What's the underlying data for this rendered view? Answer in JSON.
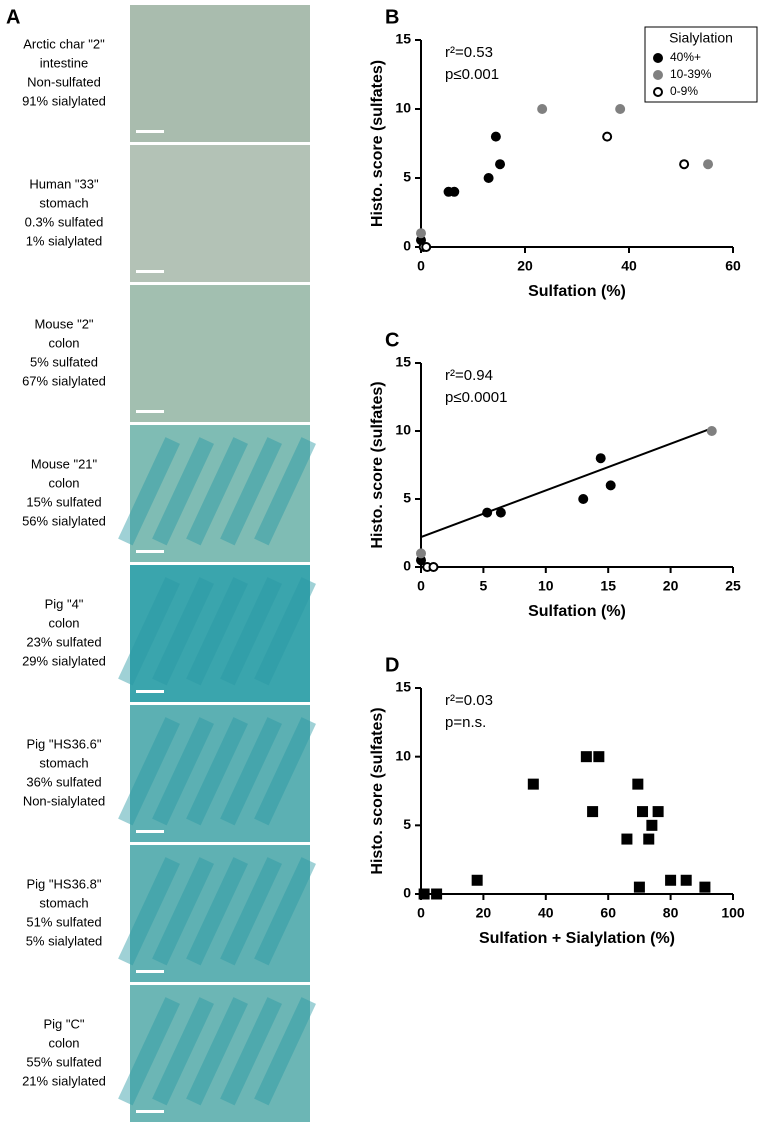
{
  "panel_a": {
    "label": "A",
    "samples": [
      {
        "lines": [
          "Arctic char \"2\"",
          "intestine",
          "Non-sulfated",
          "91% sialylated"
        ]
      },
      {
        "lines": [
          "Human \"33\"",
          "stomach",
          "0.3% sulfated",
          "1% sialylated"
        ]
      },
      {
        "lines": [
          "Mouse \"2\"",
          "colon",
          "5% sulfated",
          "67% sialylated"
        ]
      },
      {
        "lines": [
          "Mouse \"21\"",
          "colon",
          "15% sulfated",
          "56% sialylated"
        ]
      },
      {
        "lines": [
          "Pig \"4\"",
          "colon",
          "23% sulfated",
          "29% sialylated"
        ]
      },
      {
        "lines": [
          "Pig \"HS36.6\"",
          "stomach",
          "36% sulfated",
          "Non-sialylated"
        ]
      },
      {
        "lines": [
          "Pig \"HS36.8\"",
          "stomach",
          "51% sulfated",
          "5% sialylated"
        ]
      },
      {
        "lines": [
          "Pig \"C\"",
          "colon",
          "55% sulfated",
          "21% sialylated"
        ]
      }
    ]
  },
  "chart_data": [
    {
      "type": "scatter",
      "panel_label": "B",
      "x_label": "Sulfation (%)",
      "y_label": "Histo. score (sulfates)",
      "annotations": [
        "r²=0.53",
        "p≤0.001"
      ],
      "legend_title": "Sialylation",
      "legend": "upper right",
      "xlim": [
        0,
        60
      ],
      "xticks": [
        0,
        20,
        40,
        60
      ],
      "ylim": [
        0,
        15
      ],
      "yticks": [
        0,
        5,
        10,
        15
      ],
      "series": [
        {
          "name": "40%+",
          "color": "#000000",
          "x": [
            0,
            5.3,
            6.4,
            13,
            14.4,
            15.2
          ],
          "values": [
            0.5,
            4,
            4,
            5,
            8,
            6
          ]
        },
        {
          "name": "10-39%",
          "color": "#808080",
          "x": [
            0,
            23.3,
            38.3,
            55.2
          ],
          "values": [
            1,
            10,
            10,
            6
          ]
        },
        {
          "name": "0-9%",
          "color": "#ffffff",
          "x": [
            0.5,
            1,
            35.8,
            50.6
          ],
          "values": [
            0,
            0,
            8,
            6
          ]
        }
      ]
    },
    {
      "type": "scatter",
      "panel_label": "C",
      "x_label": "Sulfation (%)",
      "y_label": "Histo. score (sulfates)",
      "annotations": [
        "r²=0.94",
        "p≤0.0001"
      ],
      "xlim": [
        0,
        25
      ],
      "xticks": [
        0,
        5,
        10,
        15,
        20,
        25
      ],
      "ylim": [
        0,
        15
      ],
      "yticks": [
        0,
        5,
        10,
        15
      ],
      "trend_line": {
        "x": [
          0,
          23.3
        ],
        "values": [
          2.2,
          10.2
        ]
      },
      "series": [
        {
          "name": "40%+",
          "color": "#000000",
          "x": [
            0,
            5.3,
            6.4,
            13,
            14.4,
            15.2
          ],
          "values": [
            0.5,
            4,
            4,
            5,
            8,
            6
          ]
        },
        {
          "name": "10-39%",
          "color": "#808080",
          "x": [
            0,
            23.3
          ],
          "values": [
            1,
            10
          ]
        },
        {
          "name": "0-9%",
          "color": "#ffffff",
          "x": [
            0.5,
            1
          ],
          "values": [
            0,
            0
          ]
        }
      ]
    },
    {
      "type": "scatter",
      "panel_label": "D",
      "x_label": "Sulfation + Sialylation (%)",
      "y_label": "Histo. score (sulfates)",
      "annotations": [
        "r²=0.03",
        "p=n.s."
      ],
      "marker": "square",
      "xlim": [
        0,
        100
      ],
      "xticks": [
        0,
        20,
        40,
        60,
        80,
        100
      ],
      "ylim": [
        0,
        15
      ],
      "yticks": [
        0,
        5,
        10,
        15
      ],
      "series": [
        {
          "color": "#000000",
          "x": [
            1,
            5,
            18,
            36,
            53,
            55,
            57,
            66,
            69.5,
            70,
            71,
            73,
            74,
            76,
            80,
            85,
            91
          ],
          "values": [
            0,
            0,
            1,
            8,
            10,
            6,
            10,
            4,
            8,
            0.5,
            6,
            4,
            5,
            6,
            1,
            1,
            0.5
          ]
        }
      ]
    }
  ]
}
